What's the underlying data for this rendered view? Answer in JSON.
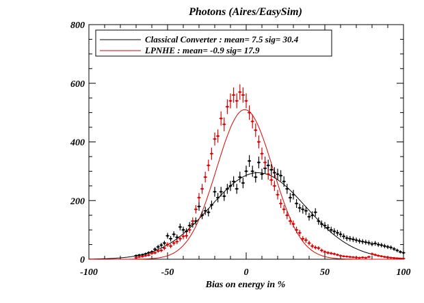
{
  "chart_data": {
    "type": "scatter",
    "title": "Photons (Aires/EasySim)",
    "xlabel": "Bias on energy in %",
    "ylabel": "",
    "xlim": [
      -100,
      100
    ],
    "ylim": [
      0,
      800
    ],
    "x_ticks": [
      -100,
      -50,
      0,
      50,
      100
    ],
    "y_ticks": [
      0,
      200,
      400,
      600,
      800
    ],
    "x_tick_labels": [
      "-100",
      "-50",
      "0",
      "50",
      "100"
    ],
    "y_tick_labels": [
      "0",
      "200",
      "400",
      "600",
      "800"
    ],
    "legend_position": "top-left",
    "series": [
      {
        "name": "Classical Converter : mean=  7.5  sig= 30.4",
        "color": "#000000",
        "fit": {
          "type": "gaussian",
          "mean": 7.5,
          "sigma": 30.4,
          "amplitude": 295
        },
        "x": [
          -70,
          -68,
          -66,
          -64,
          -62,
          -60,
          -58,
          -56,
          -54,
          -52,
          -50,
          -48,
          -46,
          -44,
          -42,
          -40,
          -38,
          -36,
          -34,
          -32,
          -30,
          -28,
          -26,
          -24,
          -22,
          -20,
          -18,
          -16,
          -14,
          -12,
          -10,
          -8,
          -6,
          -4,
          -2,
          0,
          2,
          4,
          6,
          8,
          10,
          12,
          14,
          16,
          18,
          20,
          22,
          24,
          26,
          28,
          30,
          32,
          34,
          36,
          38,
          40,
          42,
          44,
          46,
          48,
          50,
          52,
          54,
          56,
          58,
          60,
          62,
          64,
          66,
          68,
          70,
          72,
          74,
          76,
          78,
          80,
          82,
          84,
          86,
          88,
          90,
          92,
          94,
          96,
          98,
          100
        ],
        "y": [
          12,
          14,
          15,
          18,
          22,
          25,
          34,
          42,
          48,
          55,
          80,
          70,
          85,
          75,
          110,
          100,
          95,
          115,
          120,
          130,
          180,
          150,
          165,
          160,
          185,
          230,
          210,
          230,
          215,
          240,
          250,
          265,
          240,
          280,
          260,
          300,
          335,
          300,
          280,
          330,
          290,
          310,
          320,
          305,
          295,
          290,
          285,
          265,
          240,
          210,
          220,
          190,
          175,
          170,
          165,
          145,
          150,
          160,
          130,
          120,
          115,
          108,
          100,
          95,
          90,
          85,
          78,
          72,
          70,
          68,
          65,
          62,
          60,
          58,
          56,
          52,
          54,
          50,
          48,
          45,
          42,
          40,
          35,
          30,
          25,
          22
        ]
      },
      {
        "name": "LPNHE : mean= -0.9  sig= 17.9",
        "color": "#dd0000",
        "fit": {
          "type": "gaussian",
          "mean": -0.9,
          "sigma": 17.9,
          "amplitude": 510
        },
        "x": [
          -70,
          -68,
          -66,
          -64,
          -62,
          -60,
          -58,
          -56,
          -54,
          -52,
          -50,
          -48,
          -46,
          -44,
          -42,
          -40,
          -38,
          -36,
          -34,
          -32,
          -30,
          -28,
          -26,
          -24,
          -22,
          -20,
          -18,
          -16,
          -14,
          -12,
          -10,
          -8,
          -6,
          -4,
          -2,
          0,
          2,
          4,
          6,
          8,
          10,
          12,
          14,
          16,
          18,
          20,
          22,
          24,
          26,
          28,
          30,
          32,
          34,
          36,
          38,
          40,
          42,
          44,
          46,
          48,
          50,
          52,
          54,
          56,
          58,
          60,
          62,
          64,
          66,
          68,
          70,
          72,
          74,
          76,
          78,
          80,
          82,
          84,
          86,
          88,
          90,
          92,
          94,
          96,
          98,
          100
        ],
        "y": [
          5,
          8,
          9,
          12,
          14,
          20,
          22,
          28,
          30,
          38,
          50,
          45,
          55,
          60,
          70,
          78,
          80,
          100,
          130,
          170,
          210,
          240,
          280,
          320,
          360,
          410,
          420,
          480,
          460,
          520,
          540,
          560,
          540,
          570,
          560,
          540,
          500,
          470,
          440,
          400,
          360,
          330,
          290,
          270,
          250,
          220,
          190,
          170,
          150,
          130,
          120,
          100,
          90,
          70,
          65,
          55,
          45,
          40,
          38,
          30,
          25,
          22,
          20,
          18,
          15,
          12,
          10,
          9,
          8,
          7,
          6,
          5,
          6,
          5,
          8,
          18,
          15,
          12,
          10,
          8,
          6,
          5,
          4,
          3,
          2,
          2
        ]
      }
    ]
  }
}
